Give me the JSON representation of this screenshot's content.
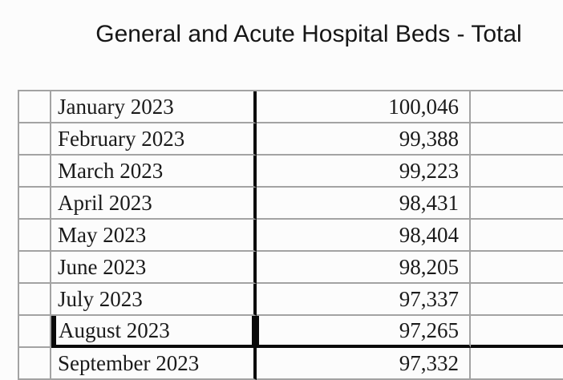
{
  "title": "General and Acute Hospital Beds - Total",
  "table": {
    "columns": [
      "",
      "month",
      "total_beds",
      ""
    ],
    "rows": [
      {
        "month": "January 2023",
        "value": "100,046"
      },
      {
        "month": "February 2023",
        "value": "99,388"
      },
      {
        "month": "March 2023",
        "value": "99,223"
      },
      {
        "month": "April 2023",
        "value": "98,431"
      },
      {
        "month": "May 2023",
        "value": "98,404"
      },
      {
        "month": "June 2023",
        "value": "98,205"
      },
      {
        "month": "July 2023",
        "value": "97,337"
      },
      {
        "month": "August 2023",
        "value": "97,265",
        "selected": true
      },
      {
        "month": "September 2023",
        "value": "97,332"
      }
    ]
  },
  "colors": {
    "background": "#fcfcfc",
    "text": "#1a1a1a",
    "grid_border": "#a3a3a3",
    "heavy_border": "#0a0a0a"
  }
}
